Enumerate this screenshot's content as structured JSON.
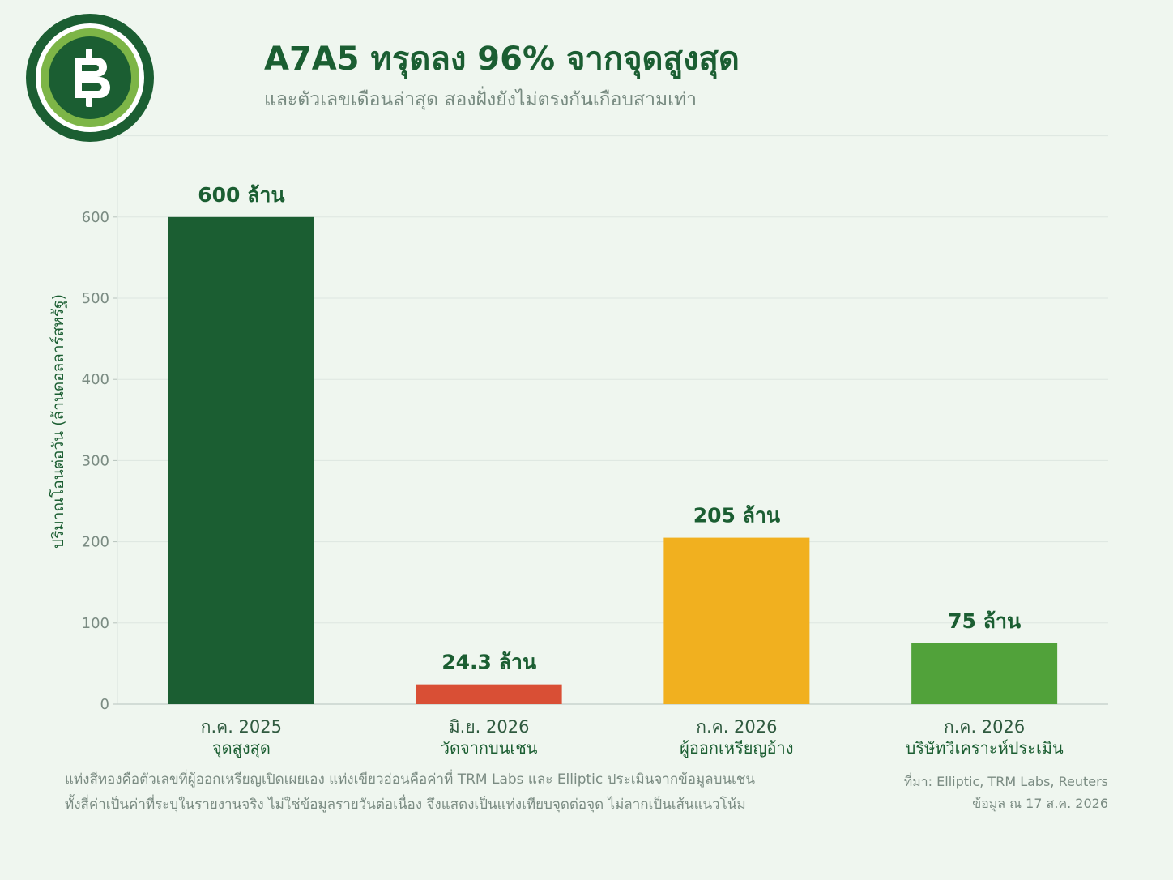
{
  "header": {
    "title": "A7A5 ทรุดลง 96% จากจุดสูงสุด",
    "subtitle": "และตัวเลขเดือนล่าสุด สองฝั่งยังไม่ตรงกันเกือบสามเท่า"
  },
  "logo": {
    "icon": "baht-coin-icon",
    "color": "#1b5e32",
    "ring_color": "#7db547"
  },
  "chart_data": {
    "type": "bar",
    "ylabel": "ปริมาณโอนต่อวัน (ล้านดอลลาร์สหรัฐ)",
    "ylim": [
      0,
      700
    ],
    "yticks": [
      0,
      100,
      200,
      300,
      400,
      500,
      600
    ],
    "grid": true,
    "categories": [
      {
        "date": "ก.ค. 2025",
        "sub": "จุดสูงสุด"
      },
      {
        "date": "มิ.ย. 2026",
        "sub": "วัดจากบนเชน"
      },
      {
        "date": "ก.ค. 2026",
        "sub": "ผู้ออกเหรียญอ้าง"
      },
      {
        "date": "ก.ค. 2026",
        "sub": "บริษัทวิเคราะห์ประเมิน"
      }
    ],
    "values": [
      600,
      24.3,
      205,
      75
    ],
    "data_labels": [
      "600 ล้าน",
      "24.3 ล้าน",
      "205 ล้าน",
      "75 ล้าน"
    ],
    "colors": [
      "#1b5e32",
      "#d94f35",
      "#f1b01f",
      "#51a23a"
    ]
  },
  "footnote": {
    "line1": "แท่งสีทองคือตัวเลขที่ผู้ออกเหรียญเปิดเผยเอง  แท่งเขียวอ่อนคือค่าที่ TRM Labs และ Elliptic ประเมินจากข้อมูลบนเชน",
    "line2": "ทั้งสี่ค่าเป็นค่าที่ระบุในรายงานจริง ไม่ใช่ข้อมูลรายวันต่อเนื่อง จึงแสดงเป็นแท่งเทียบจุดต่อจุด ไม่ลากเป็นเส้นแนวโน้ม"
  },
  "source": {
    "line1": "ที่มา: Elliptic, TRM Labs, Reuters",
    "line2": "ข้อมูล ณ 17 ส.ค. 2026"
  }
}
